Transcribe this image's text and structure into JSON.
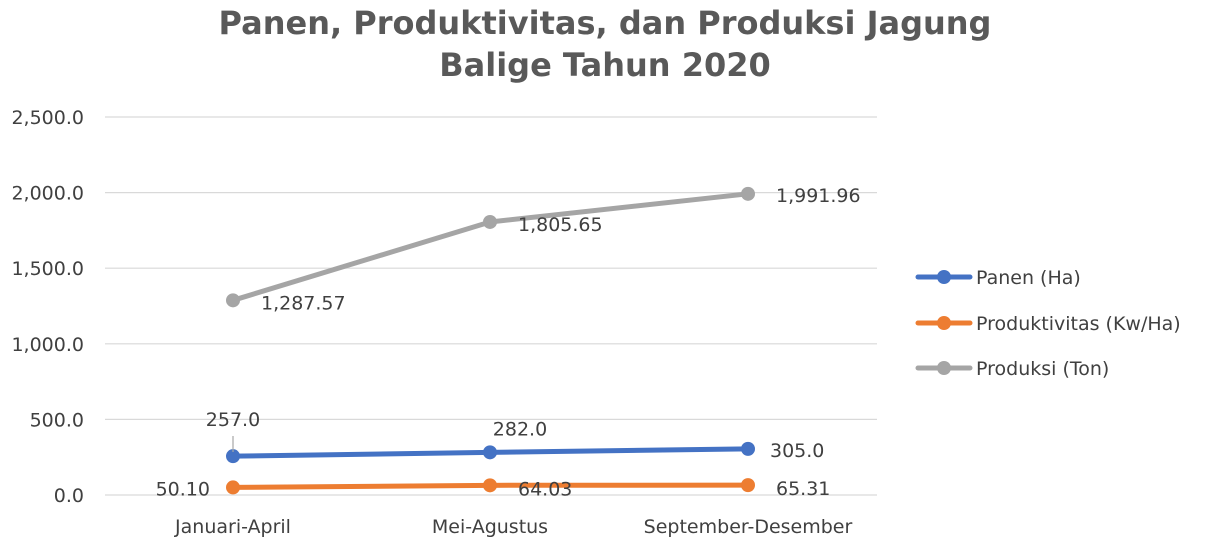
{
  "chart_data": {
    "type": "line",
    "title_lines": [
      "Panen, Produktivitas, dan Produksi Jagung",
      "Balige Tahun 2020"
    ],
    "categories": [
      "Januari-April",
      "Mei-Agustus",
      "September-Desember"
    ],
    "ylim": [
      0,
      2500
    ],
    "yticks": [
      0,
      500,
      1000,
      1500,
      2000,
      2500
    ],
    "ytick_labels": [
      "0.0",
      "500.0",
      "1,000.0",
      "1,500.0",
      "2,000.0",
      "2,500.0"
    ],
    "grid": true,
    "legend_position": "right",
    "series": [
      {
        "name": "Panen (Ha)",
        "color": "#4472C4",
        "values": [
          257.0,
          282.0,
          305.0
        ],
        "labels": [
          "257.0",
          "282.0",
          "305.0"
        ]
      },
      {
        "name": "Produktivitas (Kw/Ha)",
        "color": "#ED7D31",
        "values": [
          50.1,
          64.03,
          65.31
        ],
        "labels": [
          "50.10",
          "64.03",
          "65.31"
        ]
      },
      {
        "name": "Produksi (Ton)",
        "color": "#A5A5A5",
        "values": [
          1287.57,
          1805.65,
          1991.96
        ],
        "labels": [
          "1,287.57",
          "1,805.65",
          "1,991.96"
        ]
      }
    ]
  }
}
